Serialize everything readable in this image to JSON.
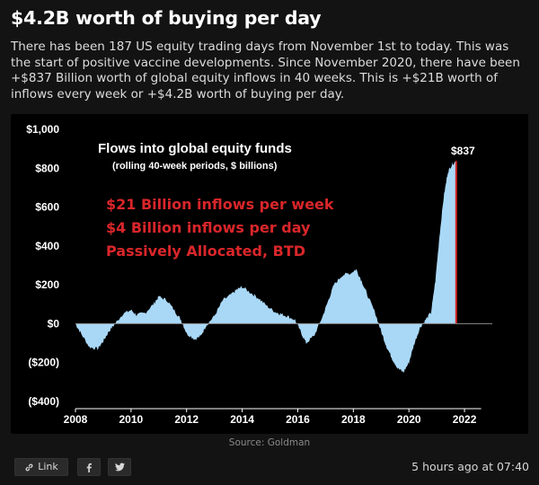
{
  "post": {
    "title": "$4.2B worth of buying per day",
    "body": "There has been 187 US equity trading days from November 1st to today. This was the start of positive vaccine developments. Since November 2020, there have been +$837 Billion worth of global equity inflows in 40 weeks. This is +$21B worth of inflows every week or +$4.2B worth of buying per day.",
    "source": "Source: Goldman",
    "timestamp": "5 hours ago at 07:40"
  },
  "actions": {
    "link_label": "Link",
    "link_icon": "link-icon",
    "facebook_icon": "facebook-icon",
    "twitter_icon": "twitter-icon"
  },
  "colors": {
    "background": "#131313",
    "chart_background": "#000000",
    "area_fill": "#a9d8f7",
    "highlight_text": "#d9262a",
    "last_bar": "#d9262a"
  },
  "chart_data": {
    "type": "area",
    "title": "Flows into global equity funds",
    "subtitle": "(rolling  40-week periods, $ billions)",
    "annotations": [
      "$21 Billion inflows per week",
      "$4 Billion inflows per day",
      "Passively Allocated, BTD"
    ],
    "end_label": "$837",
    "y_ticks": [
      "$1,000",
      "$800",
      "$600",
      "$400",
      "$200",
      "$0",
      "($200)",
      "($400)"
    ],
    "x_ticks": [
      "2008",
      "2010",
      "2012",
      "2014",
      "2016",
      "2018",
      "2020",
      "2022"
    ],
    "xlim": [
      2008,
      2023
    ],
    "ylim": [
      -400,
      1000
    ],
    "grid": false,
    "x": [
      2008.0,
      2008.2,
      2008.5,
      2008.8,
      2009.0,
      2009.2,
      2009.4,
      2009.7,
      2010.0,
      2010.2,
      2010.5,
      2010.8,
      2011.0,
      2011.3,
      2011.6,
      2011.8,
      2012.0,
      2012.3,
      2012.5,
      2012.7,
      2013.0,
      2013.3,
      2013.6,
      2013.8,
      2014.0,
      2014.3,
      2014.6,
      2014.9,
      2015.2,
      2015.4,
      2015.6,
      2015.9,
      2016.1,
      2016.3,
      2016.6,
      2016.9,
      2017.1,
      2017.3,
      2017.6,
      2017.9,
      2018.1,
      2018.3,
      2018.5,
      2018.8,
      2019.0,
      2019.2,
      2019.4,
      2019.6,
      2019.8,
      2020.0,
      2020.2,
      2020.4,
      2020.6,
      2020.8,
      2020.95,
      2021.1,
      2021.25,
      2021.4,
      2021.55,
      2021.7
    ],
    "values": [
      0,
      -50,
      -120,
      -130,
      -90,
      -40,
      -5,
      50,
      70,
      45,
      55,
      100,
      140,
      120,
      60,
      20,
      -50,
      -80,
      -65,
      -10,
      40,
      120,
      150,
      175,
      190,
      160,
      130,
      90,
      60,
      50,
      40,
      20,
      -40,
      -100,
      -60,
      40,
      120,
      200,
      250,
      260,
      280,
      220,
      150,
      50,
      -40,
      -120,
      -180,
      -230,
      -250,
      -200,
      -100,
      -20,
      20,
      60,
      220,
      450,
      650,
      780,
      820,
      837
    ]
  }
}
